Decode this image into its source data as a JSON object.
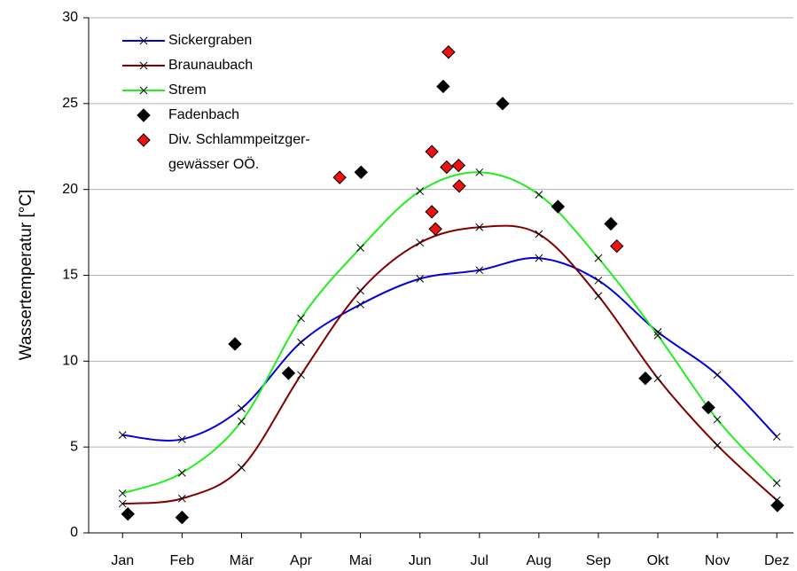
{
  "chart_data": {
    "type": "line",
    "y_label": "Wassertemperatur [°C]",
    "xlim": [
      0.43,
      12.28
    ],
    "ylim": [
      0,
      30
    ],
    "yticks": [
      0,
      5,
      10,
      15,
      20,
      25,
      30
    ],
    "xticks": [
      {
        "value": 1,
        "label": "Jan"
      },
      {
        "value": 2,
        "label": "Feb"
      },
      {
        "value": 3,
        "label": "Mär"
      },
      {
        "value": 4,
        "label": "Apr"
      },
      {
        "value": 5,
        "label": "Mai"
      },
      {
        "value": 6,
        "label": "Jun"
      },
      {
        "value": 7,
        "label": "Jul"
      },
      {
        "value": 8,
        "label": "Aug"
      },
      {
        "value": 9,
        "label": "Sep"
      },
      {
        "value": 10,
        "label": "Okt"
      },
      {
        "value": 11,
        "label": "Nov"
      },
      {
        "value": 12,
        "label": "Dez"
      }
    ],
    "grid": true,
    "series": [
      {
        "name": "Sickergraben",
        "color": "#0000dd",
        "style": "line",
        "x": [
          1,
          2,
          3,
          4,
          5,
          6,
          7,
          8,
          9,
          10,
          11,
          12
        ],
        "values": [
          5.7,
          5.45,
          7.25,
          11.1,
          13.3,
          14.8,
          15.3,
          16.0,
          14.7,
          11.7,
          9.2,
          5.6
        ]
      },
      {
        "name": "Braunaubach",
        "color": "#800000",
        "style": "line",
        "x": [
          1,
          2,
          3,
          4,
          5,
          6,
          7,
          8,
          9,
          10,
          11,
          12
        ],
        "values": [
          1.7,
          2.0,
          3.8,
          9.2,
          14.1,
          16.9,
          17.8,
          17.4,
          13.8,
          9.0,
          5.1,
          1.9
        ]
      },
      {
        "name": "Strem",
        "color": "#22ee22",
        "style": "line",
        "x": [
          1,
          2,
          3,
          4,
          5,
          6,
          7,
          8,
          9,
          10,
          11,
          12
        ],
        "values": [
          2.3,
          3.5,
          6.5,
          12.5,
          16.6,
          19.9,
          21.0,
          19.7,
          16.0,
          11.5,
          6.6,
          2.9
        ]
      },
      {
        "name": "Fadenbach",
        "color": "#000000",
        "style": "diamond",
        "x": [
          1.09,
          2.0,
          2.89,
          3.79,
          5.01,
          6.39,
          7.39,
          8.32,
          9.21,
          9.79,
          10.85,
          12.01
        ],
        "values": [
          1.1,
          0.9,
          11.0,
          9.3,
          21.0,
          26.0,
          25.0,
          19.0,
          18.0,
          9.0,
          7.3,
          1.6
        ]
      },
      {
        "name": "Div. Schlammpeitzger-gewässer OÖ.",
        "color": "#ee1111",
        "style": "diamond",
        "x": [
          4.65,
          6.2,
          6.48,
          6.2,
          6.26,
          6.45,
          6.65,
          6.66,
          9.31
        ],
        "values": [
          20.7,
          22.2,
          28.0,
          18.7,
          17.7,
          21.3,
          21.4,
          20.2,
          16.7
        ]
      }
    ]
  }
}
